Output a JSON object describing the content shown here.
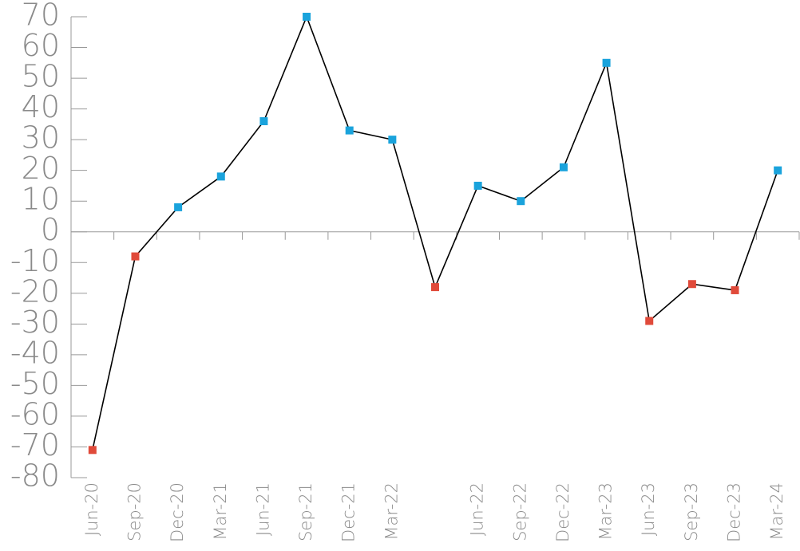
{
  "chart_data": {
    "type": "line",
    "categories": [
      "Jun-20",
      "Sep-20",
      "Dec-20",
      "Mar-21",
      "Jun-21",
      "Sep-21",
      "Dec-21",
      "Mar-22",
      null,
      "Jun-22",
      "Sep-22",
      "Dec-22",
      "Mar-23",
      "Jun-23",
      "Sep-23",
      "Dec-23",
      "Mar-24"
    ],
    "values": [
      -71,
      -8,
      8,
      18,
      36,
      70,
      33,
      30,
      -18,
      15,
      10,
      21,
      55,
      -29,
      -17,
      -19,
      20
    ],
    "color": "#000000",
    "positive_color": "#1aa3dc",
    "negative_color": "#e04a3a",
    "ylim": [
      -80,
      70
    ],
    "yticks": [
      -80,
      -70,
      -60,
      -50,
      -40,
      -30,
      -20,
      -10,
      0,
      10,
      20,
      30,
      40,
      50,
      60,
      70
    ]
  }
}
